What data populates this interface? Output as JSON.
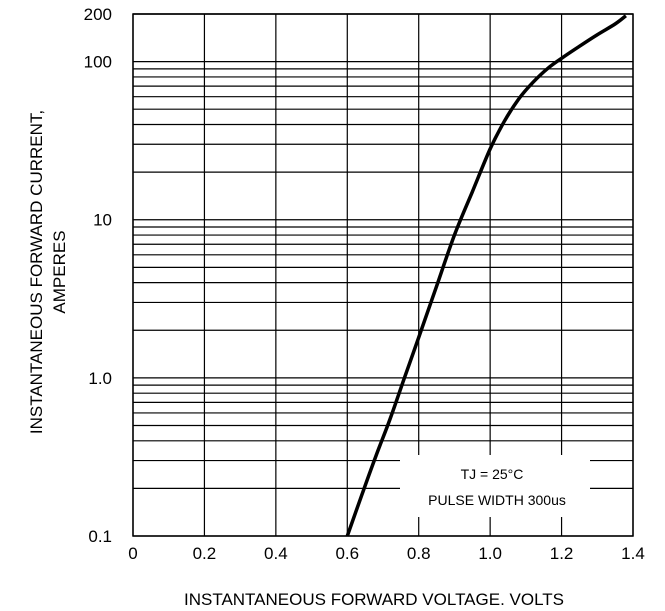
{
  "chart_data": {
    "type": "line",
    "xlabel": "INSTANTANEOUS FORWARD VOLTAGE. VOLTS",
    "ylabel": [
      "INSTANTANEOUS FORWARD CURRENT,",
      "AMPERES"
    ],
    "xlim": [
      0,
      1.4
    ],
    "ylim": [
      0.1,
      200
    ],
    "y_scale": "log",
    "grid": true,
    "x_ticks": [
      {
        "value": 0,
        "label": "0"
      },
      {
        "value": 0.2,
        "label": "0.2"
      },
      {
        "value": 0.4,
        "label": "0.4"
      },
      {
        "value": 0.6,
        "label": "0.6"
      },
      {
        "value": 0.8,
        "label": "0.8"
      },
      {
        "value": 1.0,
        "label": "1.0"
      },
      {
        "value": 1.2,
        "label": "1.2"
      },
      {
        "value": 1.4,
        "label": "1.4"
      }
    ],
    "y_ticks": [
      {
        "value": 0.1,
        "label": "0.1"
      },
      {
        "value": 1.0,
        "label": "1.0"
      },
      {
        "value": 10,
        "label": "10"
      },
      {
        "value": 100,
        "label": "100"
      },
      {
        "value": 200,
        "label": "200"
      }
    ],
    "series": [
      {
        "x": [
          0.6,
          0.64,
          0.68,
          0.72,
          0.76,
          0.8,
          0.85,
          0.9,
          0.95,
          1.0,
          1.04,
          1.08,
          1.12,
          1.16,
          1.2,
          1.25,
          1.3,
          1.35,
          1.38
        ],
        "y": [
          0.1,
          0.18,
          0.32,
          0.55,
          1.0,
          1.8,
          3.8,
          8.0,
          15.0,
          28.0,
          42.0,
          58.0,
          74.0,
          90.0,
          105.0,
          125.0,
          148.0,
          173.0,
          195.0
        ]
      }
    ],
    "annotations": [
      "TJ = 25°C",
      "PULSE WIDTH 300us"
    ],
    "colors": {
      "curve": "#000000",
      "grid": "#000000",
      "background": "#ffffff"
    }
  }
}
